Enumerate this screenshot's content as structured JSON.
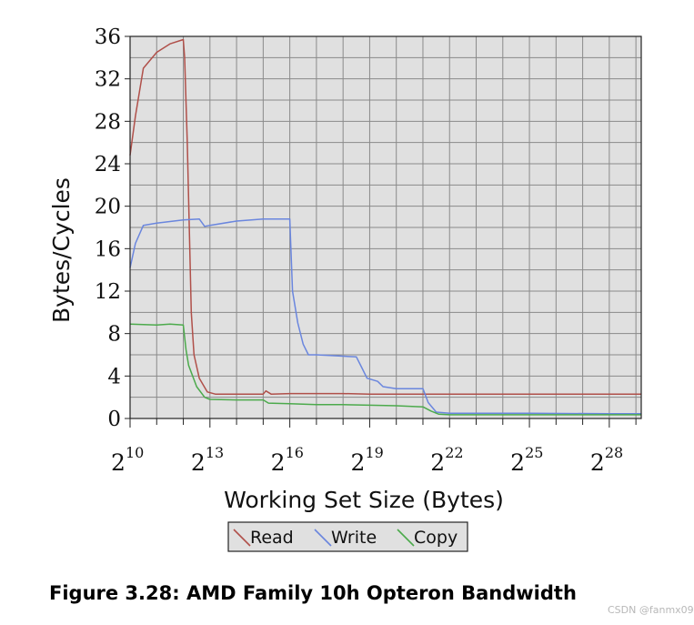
{
  "chart_data": {
    "type": "line",
    "title": "",
    "xlabel": "Working Set Size (Bytes)",
    "ylabel": "Bytes/Cycles",
    "x_scale": "log2",
    "xlim": [
      10,
      29.2
    ],
    "ylim": [
      0,
      36
    ],
    "grid": true,
    "background": "#e0e0e0",
    "legend": {
      "position": "bottom-center",
      "entries": [
        "Read",
        "Write",
        "Copy"
      ]
    },
    "x_ticks": [
      {
        "base": "2",
        "exp": "10",
        "value": 10
      },
      {
        "base": "2",
        "exp": "13",
        "value": 13
      },
      {
        "base": "2",
        "exp": "16",
        "value": 16
      },
      {
        "base": "2",
        "exp": "19",
        "value": 19
      },
      {
        "base": "2",
        "exp": "22",
        "value": 22
      },
      {
        "base": "2",
        "exp": "25",
        "value": 25
      },
      {
        "base": "2",
        "exp": "28",
        "value": 28
      }
    ],
    "y_ticks": [
      "0",
      "4",
      "8",
      "12",
      "16",
      "20",
      "24",
      "28",
      "32",
      "36"
    ],
    "series": [
      {
        "name": "Read",
        "color": "#b0504a",
        "points": [
          [
            10,
            24.8
          ],
          [
            10.2,
            28.5
          ],
          [
            10.5,
            33
          ],
          [
            11,
            34.5
          ],
          [
            11.5,
            35.3
          ],
          [
            12,
            35.7
          ],
          [
            12.05,
            34
          ],
          [
            12.15,
            26
          ],
          [
            12.3,
            10
          ],
          [
            12.4,
            6
          ],
          [
            12.6,
            3.8
          ],
          [
            12.9,
            2.5
          ],
          [
            13.2,
            2.3
          ],
          [
            14,
            2.3
          ],
          [
            15,
            2.3
          ],
          [
            15.1,
            2.6
          ],
          [
            15.3,
            2.3
          ],
          [
            16,
            2.35
          ],
          [
            17,
            2.35
          ],
          [
            18,
            2.35
          ],
          [
            19,
            2.3
          ],
          [
            20,
            2.3
          ],
          [
            21,
            2.3
          ],
          [
            22,
            2.3
          ],
          [
            24,
            2.3
          ],
          [
            26,
            2.3
          ],
          [
            28,
            2.3
          ],
          [
            29.2,
            2.3
          ]
        ]
      },
      {
        "name": "Write",
        "color": "#6a86de",
        "points": [
          [
            10,
            14.2
          ],
          [
            10.2,
            16.5
          ],
          [
            10.5,
            18.2
          ],
          [
            11,
            18.4
          ],
          [
            12,
            18.7
          ],
          [
            12.6,
            18.8
          ],
          [
            12.8,
            18.1
          ],
          [
            13,
            18.2
          ],
          [
            14,
            18.6
          ],
          [
            15,
            18.8
          ],
          [
            16,
            18.8
          ],
          [
            16.1,
            12
          ],
          [
            16.3,
            9
          ],
          [
            16.5,
            7
          ],
          [
            16.7,
            6
          ],
          [
            17,
            6
          ],
          [
            18.5,
            5.8
          ],
          [
            18.7,
            4.8
          ],
          [
            18.9,
            3.8
          ],
          [
            19.3,
            3.5
          ],
          [
            19.5,
            3
          ],
          [
            20,
            2.8
          ],
          [
            21,
            2.8
          ],
          [
            21.2,
            1.5
          ],
          [
            21.5,
            0.6
          ],
          [
            22,
            0.5
          ],
          [
            25,
            0.5
          ],
          [
            28,
            0.45
          ],
          [
            29.2,
            0.45
          ]
        ]
      },
      {
        "name": "Copy",
        "color": "#4caa4c",
        "points": [
          [
            10,
            8.9
          ],
          [
            11,
            8.8
          ],
          [
            11.5,
            8.9
          ],
          [
            12,
            8.8
          ],
          [
            12.1,
            6.5
          ],
          [
            12.2,
            5
          ],
          [
            12.5,
            3
          ],
          [
            12.8,
            2
          ],
          [
            13,
            1.8
          ],
          [
            14,
            1.75
          ],
          [
            15,
            1.75
          ],
          [
            15.2,
            1.45
          ],
          [
            16,
            1.4
          ],
          [
            17,
            1.3
          ],
          [
            18,
            1.3
          ],
          [
            19,
            1.25
          ],
          [
            20,
            1.2
          ],
          [
            21,
            1.1
          ],
          [
            21.3,
            0.7
          ],
          [
            21.6,
            0.4
          ],
          [
            22,
            0.35
          ],
          [
            24,
            0.35
          ],
          [
            26,
            0.35
          ],
          [
            28,
            0.35
          ],
          [
            29.2,
            0.35
          ]
        ]
      }
    ]
  },
  "caption": "Figure 3.28: AMD Family 10h Opteron Bandwidth",
  "watermark": "CSDN @fanmx09"
}
